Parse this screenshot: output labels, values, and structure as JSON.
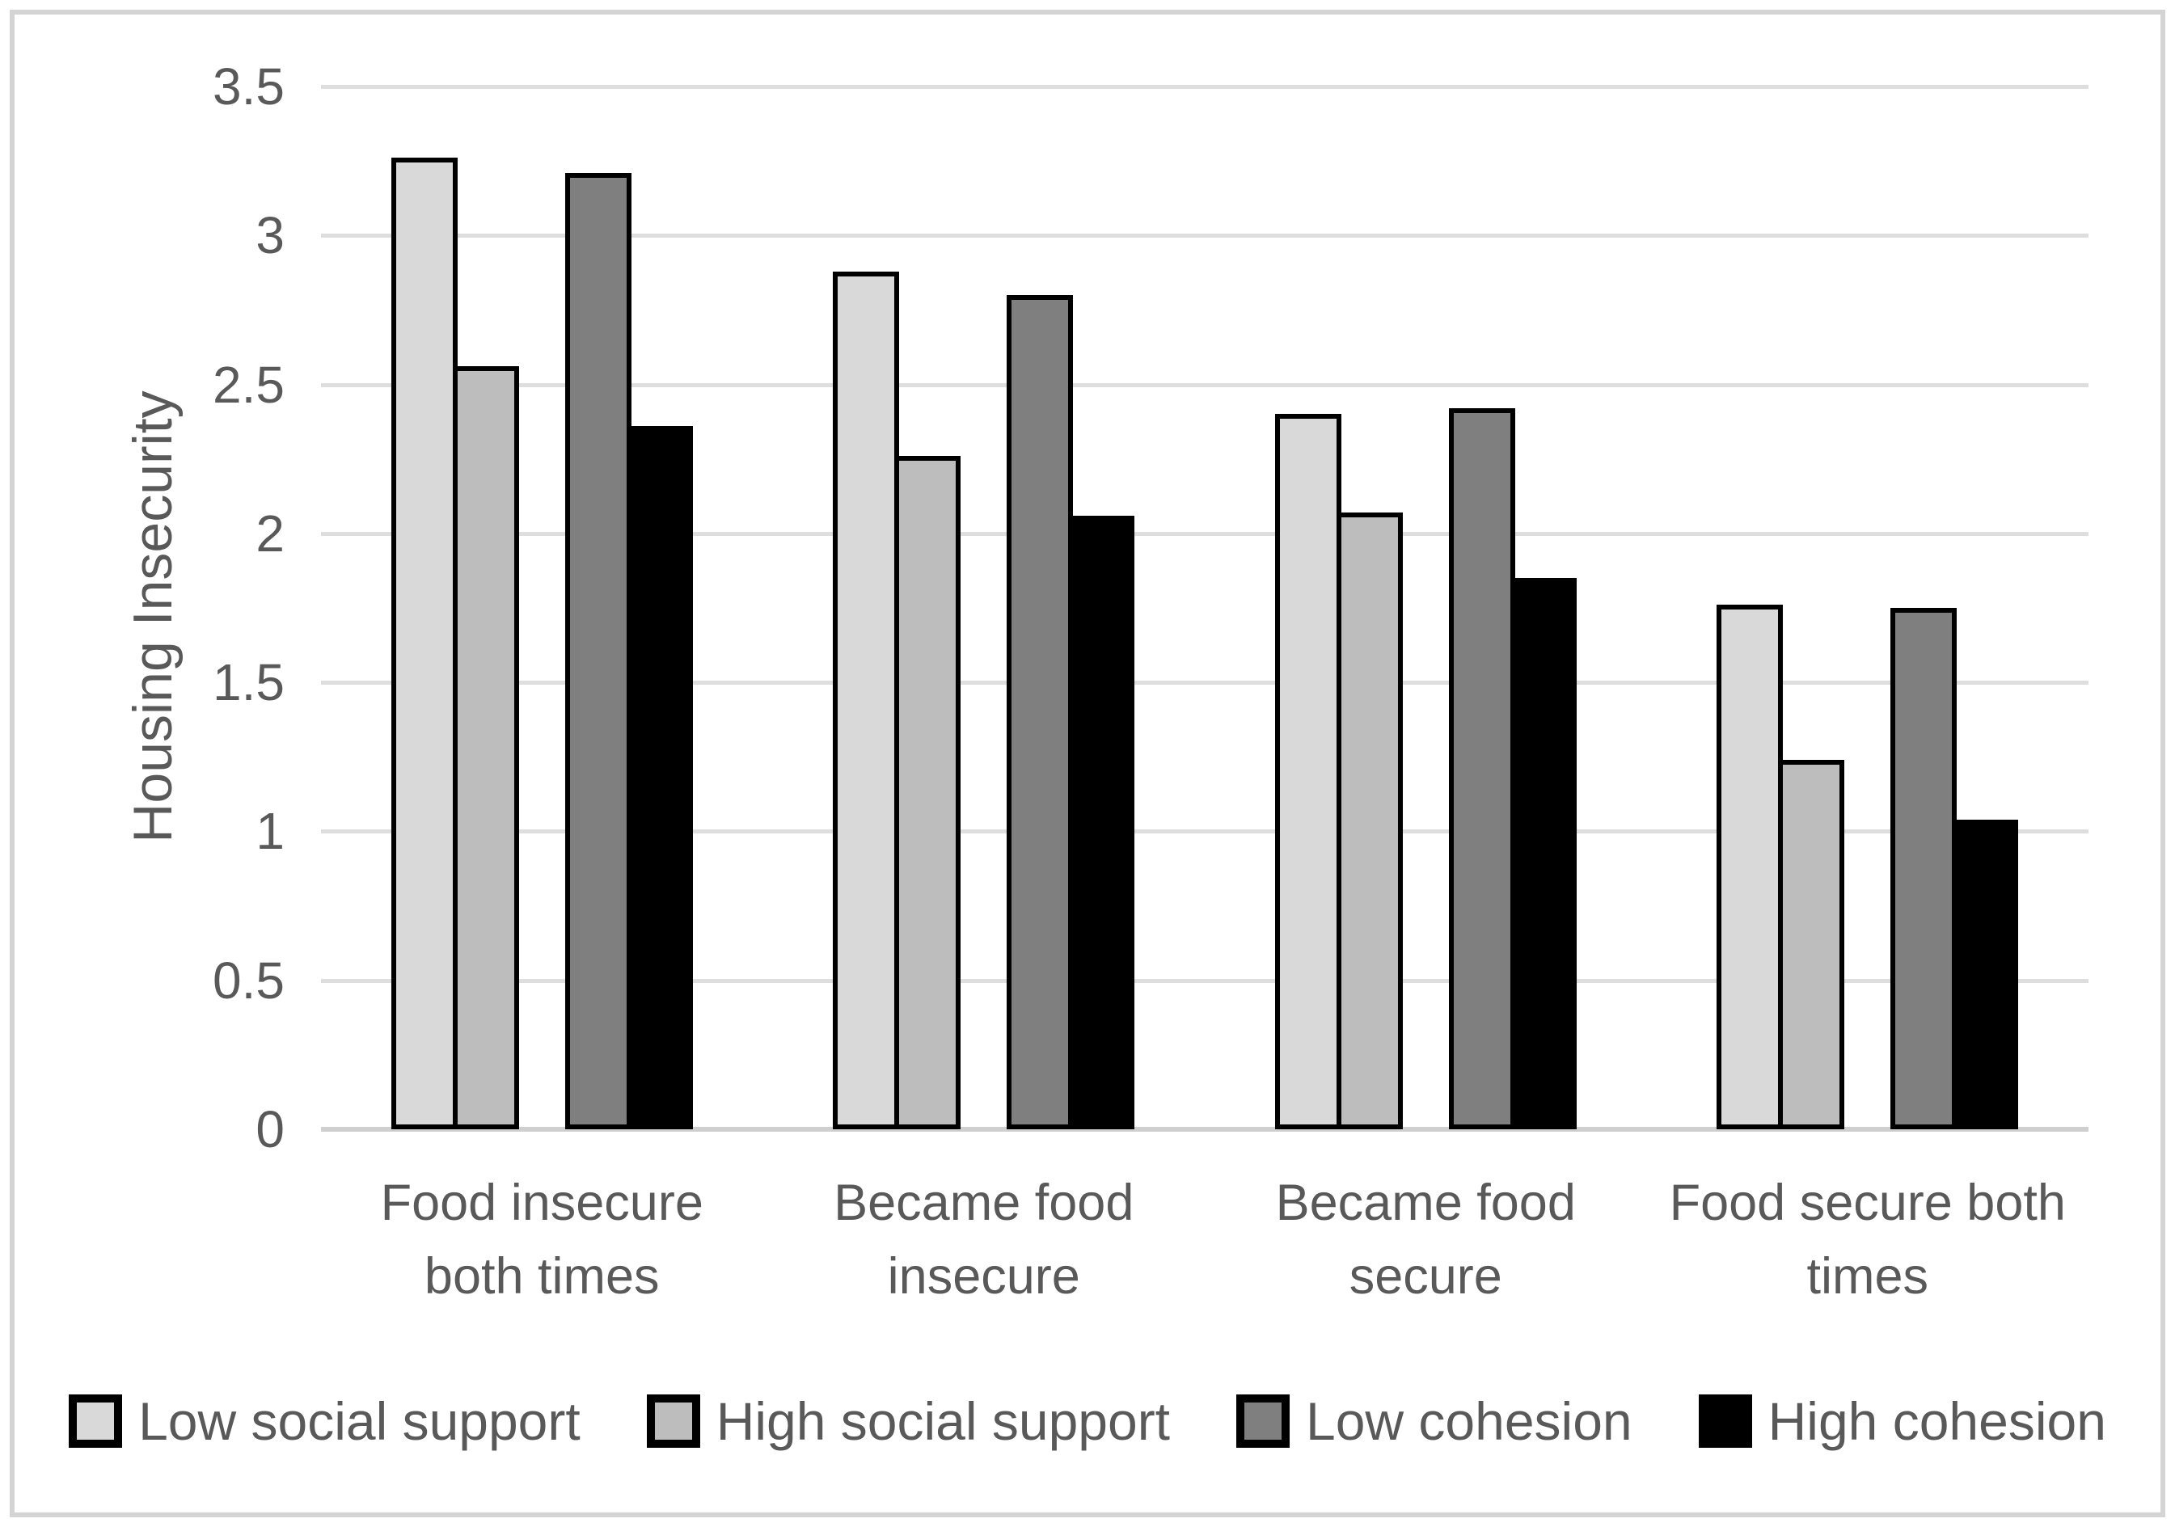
{
  "chart_data": {
    "type": "bar",
    "title": "",
    "xlabel": "",
    "ylabel": "Housing Insecurity",
    "ylim": [
      0,
      3.5
    ],
    "ytick_step": 0.5,
    "yticks": [
      {
        "value": 0,
        "label": "0"
      },
      {
        "value": 0.5,
        "label": "0.5"
      },
      {
        "value": 1,
        "label": "1"
      },
      {
        "value": 1.5,
        "label": "1.5"
      },
      {
        "value": 2,
        "label": "2"
      },
      {
        "value": 2.5,
        "label": "2.5"
      },
      {
        "value": 3,
        "label": "3"
      },
      {
        "value": 3.5,
        "label": "3.5"
      }
    ],
    "categories": [
      "Food insecure both times",
      "Became food insecure",
      "Became food secure",
      "Food secure both times"
    ],
    "series": [
      {
        "name": "Low social support",
        "color": "#d9d9d9",
        "values": [
          3.26,
          2.88,
          2.4,
          1.76
        ]
      },
      {
        "name": "High social support",
        "color": "#bdbdbd",
        "values": [
          2.56,
          2.26,
          2.07,
          1.24
        ]
      },
      {
        "name": "Low cohesion",
        "color": "#7f7f7f",
        "values": [
          3.21,
          2.8,
          2.42,
          1.75
        ]
      },
      {
        "name": "High cohesion",
        "color": "#000000",
        "values": [
          2.36,
          2.06,
          1.85,
          1.04
        ]
      }
    ],
    "grid": true,
    "legend_position": "bottom",
    "colors": {
      "text": "#595959",
      "gridline": "#dedede",
      "axis_line": "#cfcfcf",
      "bar_outline": "#000000",
      "figure_border": "#d4d4d4",
      "background": "#ffffff"
    }
  }
}
